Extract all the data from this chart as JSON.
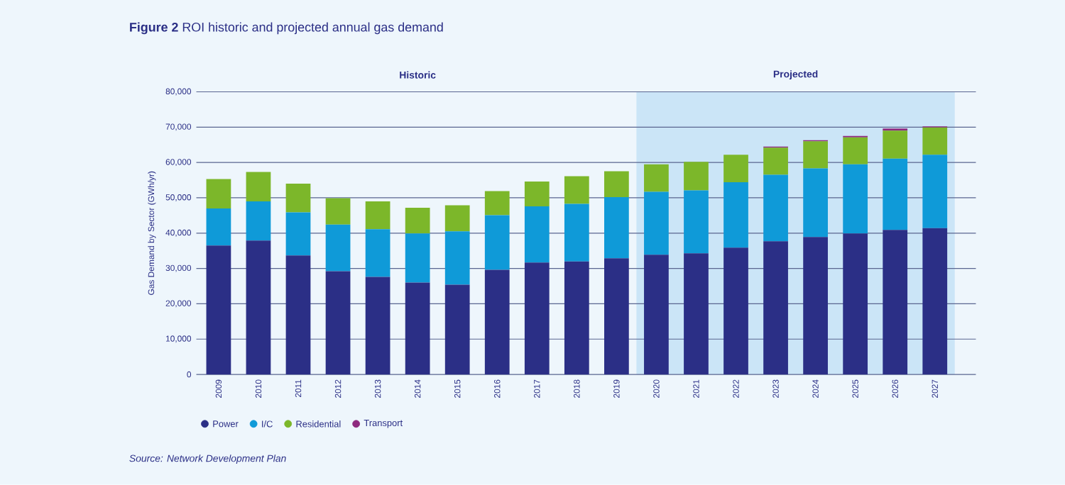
{
  "chart_data": {
    "type": "bar",
    "stacked": true,
    "title": "**Figure 2**  ROI historic and projected annual gas demand",
    "ylabel": "Gas Demand by Sector (GWh/yr)",
    "categories": [
      "2009",
      "2010",
      "2011",
      "2012",
      "2013",
      "2014",
      "2015",
      "2016",
      "2017",
      "2018",
      "2019",
      "2020",
      "2021",
      "2022",
      "2023",
      "2024",
      "2025",
      "2026",
      "2027"
    ],
    "series": [
      {
        "name": "Power",
        "color": "#2b2f86",
        "values": [
          36500,
          37900,
          33700,
          29200,
          27600,
          26000,
          25400,
          29600,
          31700,
          32000,
          32900,
          33900,
          34300,
          35900,
          37700,
          38900,
          39900,
          40900,
          41400
        ]
      },
      {
        "name": "I/C",
        "color": "#0f9ad8",
        "values": [
          10500,
          11100,
          12200,
          13200,
          13500,
          13900,
          15100,
          15500,
          15900,
          16300,
          17300,
          17800,
          17800,
          18500,
          18800,
          19400,
          19600,
          20200,
          20800
        ]
      },
      {
        "name": "Residential",
        "color": "#7cb72a",
        "values": [
          8300,
          8300,
          8100,
          7500,
          7900,
          7300,
          7400,
          6800,
          7000,
          7800,
          7300,
          7800,
          8100,
          7800,
          7700,
          7700,
          7600,
          7900,
          7700
        ]
      },
      {
        "name": "Transport",
        "color": "#8e2a7e",
        "values": [
          null,
          null,
          null,
          null,
          null,
          null,
          null,
          null,
          null,
          null,
          null,
          null,
          null,
          null,
          300,
          300,
          400,
          600,
          300
        ]
      }
    ],
    "ylim": [
      0,
      80000
    ],
    "yticks": [
      {
        "value": 0,
        "label": "0"
      },
      {
        "value": 10000,
        "label": "10,000"
      },
      {
        "value": 20000,
        "label": "20,000"
      },
      {
        "value": 30000,
        "label": "30,000"
      },
      {
        "value": 40000,
        "label": "40,000"
      },
      {
        "value": 50000,
        "label": "50,000"
      },
      {
        "value": 60000,
        "label": "60,000"
      },
      {
        "value": 70000,
        "label": "70,000"
      },
      {
        "value": 80000,
        "label": "80,000"
      }
    ],
    "grid": "y",
    "legend": "bottom left",
    "marker": "circle",
    "bands": [
      {
        "axis": "x",
        "from": "2020",
        "to": "2027",
        "label": "Projected",
        "color": "#cbe5f7"
      }
    ],
    "annotations": [
      "Historic",
      "*Source: Network Development Plan*"
    ]
  }
}
